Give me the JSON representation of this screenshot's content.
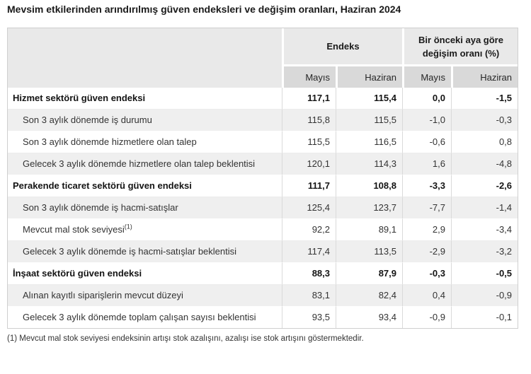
{
  "title": "Mevsim etkilerinden arındırılmış güven endeksleri ve değişim oranları, Haziran 2024",
  "table": {
    "col_groups": [
      {
        "label": "Endeks"
      },
      {
        "label": "Bir önceki aya göre\ndeğişim oranı (%)"
      }
    ],
    "sub_headers": [
      "Mayıs",
      "Haziran",
      "Mayıs",
      "Haziran"
    ],
    "rows": [
      {
        "label": "Hizmet sektörü güven endeksi",
        "bold": true,
        "values": [
          "117,1",
          "115,4",
          "0,0",
          "-1,5"
        ]
      },
      {
        "label": "Son 3 aylık dönemde iş durumu",
        "bold": false,
        "values": [
          "115,8",
          "115,5",
          "-1,0",
          "-0,3"
        ]
      },
      {
        "label": "Son 3 aylık dönemde hizmetlere olan talep",
        "bold": false,
        "values": [
          "115,5",
          "116,5",
          "-0,6",
          "0,8"
        ]
      },
      {
        "label": "Gelecek 3 aylık dönemde hizmetlere olan talep beklentisi",
        "bold": false,
        "justify": true,
        "values": [
          "120,1",
          "114,3",
          "1,6",
          "-4,8"
        ]
      },
      {
        "label": "Perakende ticaret sektörü güven endeksi",
        "bold": true,
        "values": [
          "111,7",
          "108,8",
          "-3,3",
          "-2,6"
        ]
      },
      {
        "label": "Son 3 aylık dönemde iş hacmi-satışlar",
        "bold": false,
        "values": [
          "125,4",
          "123,7",
          "-7,7",
          "-1,4"
        ]
      },
      {
        "label": "Mevcut mal stok seviyesi",
        "sup": "(1)",
        "bold": false,
        "values": [
          "92,2",
          "89,1",
          "2,9",
          "-3,4"
        ]
      },
      {
        "label": "Gelecek 3 aylık dönemde iş hacmi-satışlar beklentisi",
        "bold": false,
        "values": [
          "117,4",
          "113,5",
          "-2,9",
          "-3,2"
        ]
      },
      {
        "label": "İnşaat sektörü güven endeksi",
        "bold": true,
        "values": [
          "88,3",
          "87,9",
          "-0,3",
          "-0,5"
        ]
      },
      {
        "label": "Alınan kayıtlı siparişlerin mevcut düzeyi",
        "bold": false,
        "values": [
          "83,1",
          "82,4",
          "0,4",
          "-0,9"
        ]
      },
      {
        "label": "Gelecek 3 aylık dönemde toplam çalışan sayısı beklentisi",
        "bold": false,
        "values": [
          "93,5",
          "93,4",
          "-0,9",
          "-0,1"
        ]
      }
    ]
  },
  "footnote": "(1) Mevcut mal stok seviyesi endeksinin artışı stok azalışını, azalışı ise stok artışını göstermektedir.",
  "colors": {
    "header_bg": "#e9e9e9",
    "subheader_bg": "#d9d9d9",
    "stripe_bg": "#efefef",
    "cell_border": "#dadada",
    "title_text": "#1a1a1a",
    "body_text": "#333333"
  }
}
